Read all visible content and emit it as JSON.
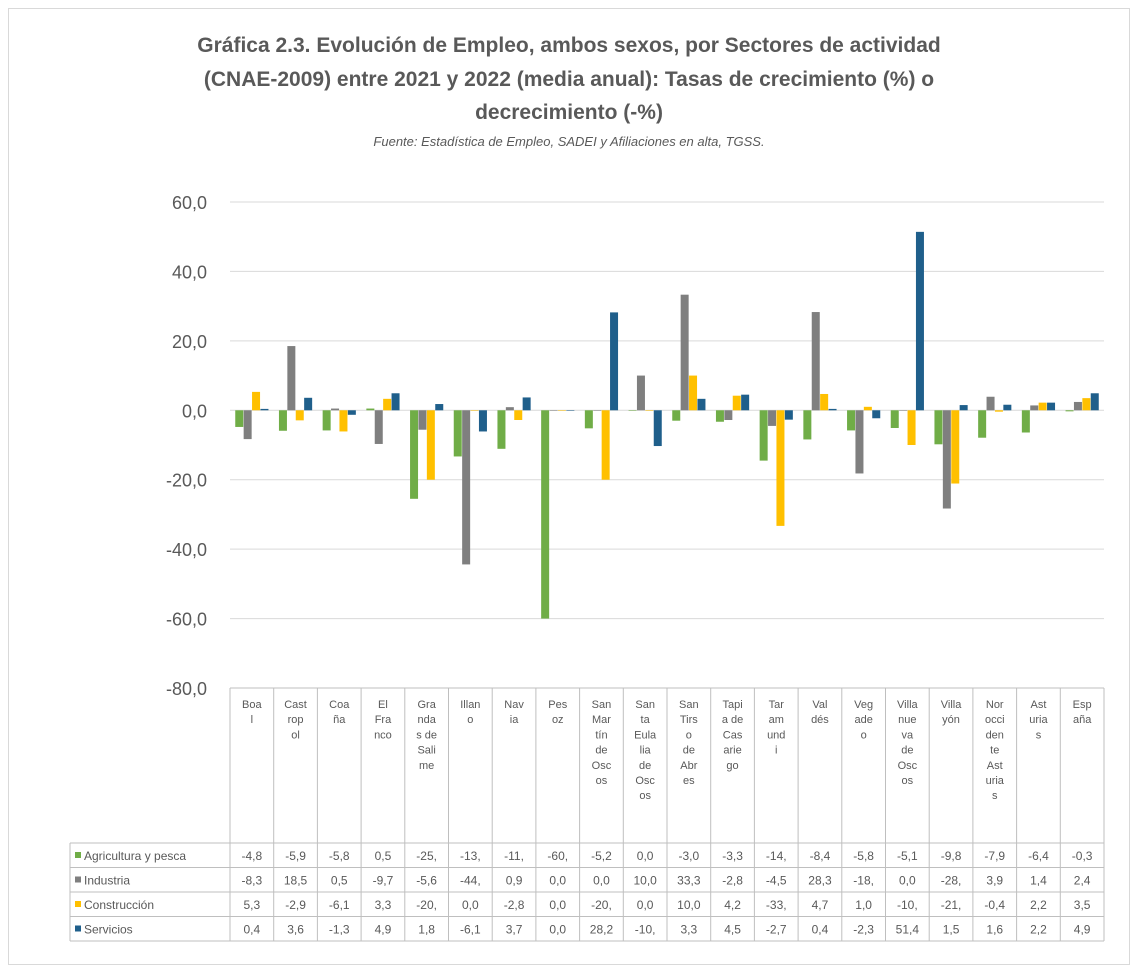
{
  "chart_data": {
    "type": "bar",
    "title_lines": [
      "Gráfica 2.3. Evolución de Empleo, ambos sexos, por Sectores de actividad",
      "(CNAE-2009) entre 2021 y 2022 (media anual): Tasas de crecimiento (%) o",
      "decrecimiento (-%)"
    ],
    "subtitle": "Fuente: Estadística de Empleo, SADEI y Afiliaciones en alta, TGSS.",
    "ylim": [
      -80,
      60
    ],
    "yticks": [
      "60,0",
      "40,0",
      "20,0",
      "0,0",
      "-20,0",
      "-40,0",
      "-60,0",
      "-80,0"
    ],
    "grid": true,
    "legend": "table-left",
    "category_lines": [
      [
        "Boa",
        "l"
      ],
      [
        "Cast",
        "rop",
        "ol"
      ],
      [
        "Coa",
        "ña"
      ],
      [
        "El",
        "Fra",
        "nco"
      ],
      [
        "Gra",
        "nda",
        "s de",
        "Sali",
        "me"
      ],
      [
        "Illan",
        "o"
      ],
      [
        "Nav",
        "ia"
      ],
      [
        "Pes",
        "oz"
      ],
      [
        "San",
        "Mar",
        "tín",
        "de",
        "Osc",
        "os"
      ],
      [
        "San",
        "ta",
        "Eula",
        "lia",
        "de",
        "Osc",
        "os"
      ],
      [
        "San",
        "Tirs",
        "o",
        "de",
        "Abr",
        "es"
      ],
      [
        "Tapi",
        "a de",
        "Cas",
        "arie",
        "go"
      ],
      [
        "Tar",
        "am",
        "und",
        "i"
      ],
      [
        "Val",
        "dés"
      ],
      [
        "Veg",
        "ade",
        "o"
      ],
      [
        "Villa",
        "nue",
        "va",
        "de",
        "Osc",
        "os"
      ],
      [
        "Villa",
        "yón"
      ],
      [
        "Nor",
        "occi",
        "den",
        "te",
        "Ast",
        "uria",
        "s"
      ],
      [
        "Ast",
        "uria",
        "s"
      ],
      [
        "Esp",
        "aña"
      ]
    ],
    "series": [
      {
        "name": "Agricultura y pesca",
        "color": "#70ad47",
        "values": [
          -4.8,
          -5.9,
          -5.8,
          0.5,
          -25.5,
          -13.3,
          -11.1,
          -60.0,
          -5.2,
          0.0,
          -3.0,
          -3.3,
          -14.5,
          -8.4,
          -5.8,
          -5.1,
          -9.8,
          -7.9,
          -6.4,
          -0.3
        ],
        "labels": [
          "-4,8",
          "-5,9",
          "-5,8",
          "0,5",
          "-25,",
          "-13,",
          "-11,",
          "-60,",
          "-5,2",
          "0,0",
          "-3,0",
          "-3,3",
          "-14,",
          "-8,4",
          "-5,8",
          "-5,1",
          "-9,8",
          "-7,9",
          "-6,4",
          "-0,3"
        ]
      },
      {
        "name": "Industria",
        "color": "#7f7f7f",
        "values": [
          -8.3,
          18.5,
          0.5,
          -9.7,
          -5.6,
          -44.4,
          0.9,
          0.0,
          0.0,
          10.0,
          33.3,
          -2.8,
          -4.5,
          28.3,
          -18.2,
          0.0,
          -28.3,
          3.9,
          1.4,
          2.4
        ],
        "labels": [
          "-8,3",
          "18,5",
          "0,5",
          "-9,7",
          "-5,6",
          "-44,",
          "0,9",
          "0,0",
          "0,0",
          "10,0",
          "33,3",
          "-2,8",
          "-4,5",
          "28,3",
          "-18,",
          "0,0",
          "-28,",
          "3,9",
          "1,4",
          "2,4"
        ]
      },
      {
        "name": "Construcción",
        "color": "#ffc000",
        "values": [
          5.3,
          -2.9,
          -6.1,
          3.3,
          -20.0,
          0.0,
          -2.8,
          0.0,
          -20.0,
          0.0,
          10.0,
          4.2,
          -33.3,
          4.7,
          1.0,
          -10.0,
          -21.1,
          -0.4,
          2.2,
          3.5
        ],
        "labels": [
          "5,3",
          "-2,9",
          "-6,1",
          "3,3",
          "-20,",
          "0,0",
          "-2,8",
          "0,0",
          "-20,",
          "0,0",
          "10,0",
          "4,2",
          "-33,",
          "4,7",
          "1,0",
          "-10,",
          "-21,",
          "-0,4",
          "2,2",
          "3,5"
        ]
      },
      {
        "name": "Servicios",
        "color": "#1f5f8b",
        "values": [
          0.4,
          3.6,
          -1.3,
          4.9,
          1.8,
          -6.1,
          3.7,
          0.0,
          28.2,
          -10.3,
          3.3,
          4.5,
          -2.7,
          0.4,
          -2.3,
          51.4,
          1.5,
          1.6,
          2.2,
          4.9
        ],
        "labels": [
          "0,4",
          "3,6",
          "-1,3",
          "4,9",
          "1,8",
          "-6,1",
          "3,7",
          "0,0",
          "28,2",
          "-10,",
          "3,3",
          "4,5",
          "-2,7",
          "0,4",
          "-2,3",
          "51,4",
          "1,5",
          "1,6",
          "2,2",
          "4,9"
        ]
      }
    ]
  }
}
